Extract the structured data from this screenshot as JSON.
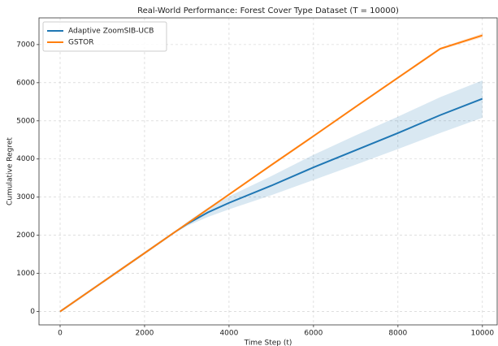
{
  "chart_data": {
    "type": "line",
    "title": "Real-World Performance: Forest Cover Type Dataset (T = 10000)",
    "xlabel": "Time Step (t)",
    "ylabel": "Cumulative Regret",
    "x": [
      0,
      1000,
      2000,
      2700,
      3000,
      3500,
      4000,
      5000,
      6000,
      7000,
      8000,
      9000,
      10000
    ],
    "series": [
      {
        "name": "Adaptive ZoomSIB-UCB",
        "color": "#1f77b4",
        "values": [
          0,
          766,
          1532,
          2070,
          2290,
          2600,
          2850,
          3300,
          3780,
          4230,
          4680,
          5150,
          5580
        ],
        "band": {
          "lower": [
            0,
            766,
            1532,
            2060,
            2240,
            2480,
            2680,
            3050,
            3450,
            3850,
            4260,
            4680,
            5080
          ],
          "upper": [
            0,
            766,
            1532,
            2080,
            2340,
            2720,
            3020,
            3550,
            4110,
            4620,
            5110,
            5620,
            6060
          ]
        }
      },
      {
        "name": "GSTOR",
        "color": "#ff7f0e",
        "values": [
          0,
          766,
          1532,
          2070,
          2300,
          2685,
          3070,
          3840,
          4600,
          5370,
          6130,
          6890,
          7240
        ],
        "band": {
          "lower": [
            0,
            766,
            1532,
            2065,
            2290,
            2675,
            3055,
            3820,
            4580,
            5345,
            6100,
            6860,
            7190
          ],
          "upper": [
            0,
            766,
            1532,
            2075,
            2310,
            2695,
            3085,
            3860,
            4620,
            5395,
            6160,
            6920,
            7290
          ]
        }
      }
    ],
    "xlim": [
      -500,
      10350
    ],
    "ylim": [
      -350,
      7700
    ],
    "xticks": [
      0,
      2000,
      4000,
      6000,
      8000,
      10000
    ],
    "yticks": [
      0,
      1000,
      2000,
      3000,
      4000,
      5000,
      6000,
      7000
    ],
    "grid": true,
    "legend": "upper left"
  }
}
